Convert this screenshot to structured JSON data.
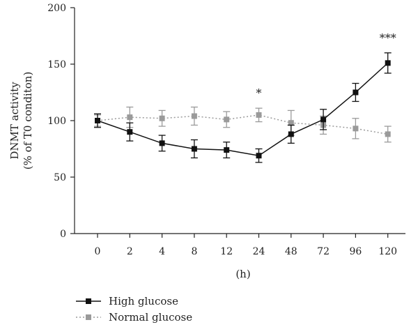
{
  "chart_data": {
    "type": "line",
    "categories": [
      "0",
      "2",
      "4",
      "8",
      "12",
      "24",
      "48",
      "72",
      "96",
      "120"
    ],
    "xlabel": "(h)",
    "ylabel": [
      "DNMT activity",
      "(% of T0 conditon)"
    ],
    "ylim": [
      0,
      200
    ],
    "yticks": [
      0,
      50,
      100,
      150,
      200
    ],
    "grid": false,
    "legend_position": "bottom-left",
    "series": [
      {
        "name": "High glucose",
        "color": "#111111",
        "line_style": "solid",
        "marker": "square",
        "values": [
          100,
          90,
          80,
          75,
          74,
          69,
          88,
          101,
          125,
          151
        ],
        "errors": [
          6,
          8,
          7,
          8,
          7,
          6,
          8,
          9,
          8,
          9
        ]
      },
      {
        "name": "Normal glucose",
        "color": "#9a9a9a",
        "line_style": "dotted",
        "marker": "square",
        "values": [
          100,
          103,
          102,
          104,
          101,
          105,
          98,
          96,
          93,
          88
        ],
        "errors": [
          5,
          9,
          7,
          8,
          7,
          6,
          11,
          8,
          9,
          7
        ]
      }
    ],
    "annotations": [
      {
        "category": "24",
        "text": "*"
      },
      {
        "category": "120",
        "text": "***"
      }
    ]
  }
}
